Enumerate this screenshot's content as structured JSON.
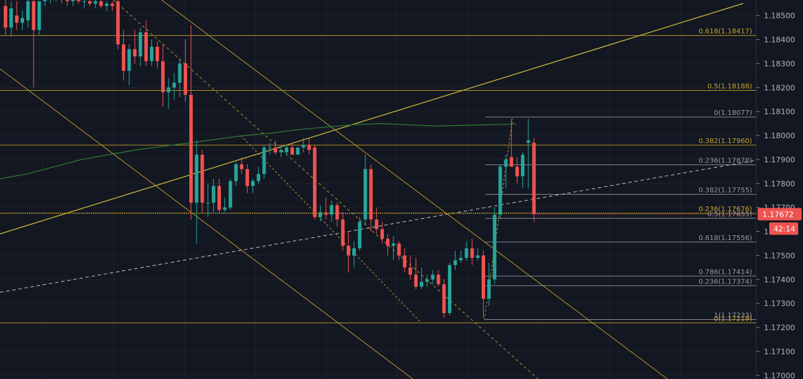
{
  "chart_data": {
    "type": "candlestick",
    "ylim": [
      1.16985,
      1.18565
    ],
    "y_ticks": [
      "1.18500",
      "1.18400",
      "1.18300",
      "1.18200",
      "1.18100",
      "1.18000",
      "1.17900",
      "1.17800",
      "1.17700",
      "1.17500",
      "1.17400",
      "1.17300",
      "1.17200",
      "1.17100",
      "1.17000"
    ],
    "colors": {
      "background": "#131722",
      "up": "#26a69a",
      "down": "#ef5350",
      "gold": "#c9a227",
      "yellow": "#e3d33a",
      "grey": "#9598a1",
      "ma": "#2e7d32",
      "dashed_white": "#d1d4dc"
    },
    "candles": [
      [
        1.1854,
        1.1857,
        1.1842,
        1.1845
      ],
      [
        1.1845,
        1.1856,
        1.1841,
        1.1853
      ],
      [
        1.185,
        1.1856,
        1.1844,
        1.1847
      ],
      [
        1.1847,
        1.1852,
        1.1844,
        1.1849
      ],
      [
        1.1848,
        1.1857,
        1.1845,
        1.1856
      ],
      [
        1.1856,
        1.1857,
        1.182,
        1.1844
      ],
      [
        1.1844,
        1.1856,
        1.1842,
        1.1856
      ],
      [
        1.1856,
        1.1858,
        1.1854,
        1.1857
      ],
      [
        1.1857,
        1.1858,
        1.1855,
        1.1858
      ],
      [
        1.1858,
        1.1859,
        1.1856,
        1.1858
      ],
      [
        1.1858,
        1.1859,
        1.1855,
        1.1857
      ],
      [
        1.1857,
        1.1858,
        1.1854,
        1.1856
      ],
      [
        1.1856,
        1.1858,
        1.1854,
        1.1857
      ],
      [
        1.1857,
        1.1858,
        1.1855,
        1.1856
      ],
      [
        1.1856,
        1.1857,
        1.1853,
        1.1856
      ],
      [
        1.1856,
        1.1857,
        1.1854,
        1.1855
      ],
      [
        1.1855,
        1.1857,
        1.1853,
        1.1856
      ],
      [
        1.1856,
        1.1857,
        1.1853,
        1.1854
      ],
      [
        1.1854,
        1.1856,
        1.1852,
        1.1855
      ],
      [
        1.1855,
        1.1856,
        1.1852,
        1.1854
      ],
      [
        1.1856,
        1.1857,
        1.1836,
        1.1838
      ],
      [
        1.1838,
        1.1844,
        1.1823,
        1.1827
      ],
      [
        1.1827,
        1.1838,
        1.1821,
        1.1836
      ],
      [
        1.1836,
        1.1844,
        1.183,
        1.1833
      ],
      [
        1.1833,
        1.1845,
        1.1829,
        1.1843
      ],
      [
        1.1843,
        1.1848,
        1.1829,
        1.1831
      ],
      [
        1.1831,
        1.184,
        1.1829,
        1.1837
      ],
      [
        1.1837,
        1.1839,
        1.1828,
        1.1831
      ],
      [
        1.1831,
        1.1838,
        1.1812,
        1.1818
      ],
      [
        1.1818,
        1.1824,
        1.1811,
        1.182
      ],
      [
        1.182,
        1.1826,
        1.1815,
        1.1822
      ],
      [
        1.1822,
        1.1832,
        1.1816,
        1.183
      ],
      [
        1.183,
        1.184,
        1.1814,
        1.1817
      ],
      [
        1.1817,
        1.1846,
        1.1765,
        1.1772
      ],
      [
        1.1772,
        1.1798,
        1.1755,
        1.1792
      ],
      [
        1.1792,
        1.1794,
        1.1768,
        1.1772
      ],
      [
        1.1772,
        1.178,
        1.1766,
        1.1772
      ],
      [
        1.1772,
        1.1782,
        1.1768,
        1.1779
      ],
      [
        1.1779,
        1.1782,
        1.1768,
        1.1769
      ],
      [
        1.1769,
        1.1774,
        1.1768,
        1.177
      ],
      [
        1.177,
        1.1782,
        1.1769,
        1.1781
      ],
      [
        1.1781,
        1.1789,
        1.1779,
        1.1788
      ],
      [
        1.1788,
        1.1791,
        1.1784,
        1.1786
      ],
      [
        1.1786,
        1.1788,
        1.1776,
        1.1779
      ],
      [
        1.1779,
        1.1782,
        1.1776,
        1.1781
      ],
      [
        1.1781,
        1.1787,
        1.178,
        1.1784
      ],
      [
        1.1784,
        1.1796,
        1.1782,
        1.1795
      ],
      [
        1.1795,
        1.1797,
        1.1792,
        1.1795
      ],
      [
        1.1795,
        1.1798,
        1.1792,
        1.1793
      ],
      [
        1.1793,
        1.1796,
        1.1791,
        1.1794
      ],
      [
        1.1793,
        1.1796,
        1.1792,
        1.1795
      ],
      [
        1.1795,
        1.1797,
        1.1792,
        1.1792
      ],
      [
        1.1792,
        1.1795,
        1.1792,
        1.1795
      ],
      [
        1.1795,
        1.1799,
        1.1793,
        1.1796
      ],
      [
        1.1796,
        1.1799,
        1.1792,
        1.1794
      ],
      [
        1.1795,
        1.1796,
        1.1765,
        1.1766
      ],
      [
        1.1766,
        1.1771,
        1.1764,
        1.1768
      ],
      [
        1.1768,
        1.1774,
        1.1765,
        1.1767
      ],
      [
        1.1767,
        1.1773,
        1.1764,
        1.1771
      ],
      [
        1.1771,
        1.1772,
        1.1762,
        1.1765
      ],
      [
        1.1765,
        1.1768,
        1.1752,
        1.1754
      ],
      [
        1.1754,
        1.176,
        1.1743,
        1.175
      ],
      [
        1.175,
        1.1756,
        1.1745,
        1.1753
      ],
      [
        1.1753,
        1.1766,
        1.1752,
        1.1764
      ],
      [
        1.1765,
        1.1792,
        1.1763,
        1.1786
      ],
      [
        1.1786,
        1.1788,
        1.176,
        1.1765
      ],
      [
        1.1765,
        1.177,
        1.1759,
        1.1761
      ],
      [
        1.1761,
        1.1764,
        1.1755,
        1.1757
      ],
      [
        1.1757,
        1.1759,
        1.175,
        1.1754
      ],
      [
        1.1754,
        1.1758,
        1.1748,
        1.1755
      ],
      [
        1.1755,
        1.1756,
        1.1748,
        1.175
      ],
      [
        1.175,
        1.1753,
        1.1743,
        1.1745
      ],
      [
        1.1745,
        1.175,
        1.174,
        1.1742
      ],
      [
        1.1742,
        1.1749,
        1.1736,
        1.1737
      ],
      [
        1.1737,
        1.1745,
        1.1736,
        1.1739
      ],
      [
        1.1739,
        1.1742,
        1.1737,
        1.174
      ],
      [
        1.174,
        1.1744,
        1.1738,
        1.1742
      ],
      [
        1.1742,
        1.1744,
        1.1737,
        1.1738
      ],
      [
        1.1738,
        1.174,
        1.1724,
        1.1726
      ],
      [
        1.1726,
        1.1747,
        1.1725,
        1.1746
      ],
      [
        1.1746,
        1.1752,
        1.1744,
        1.1748
      ],
      [
        1.1748,
        1.1752,
        1.1747,
        1.1749
      ],
      [
        1.1749,
        1.1756,
        1.1748,
        1.1753
      ],
      [
        1.1753,
        1.1757,
        1.1746,
        1.1749
      ],
      [
        1.1749,
        1.1753,
        1.1748,
        1.175
      ],
      [
        1.175,
        1.1752,
        1.1724,
        1.1732
      ],
      [
        1.1732,
        1.1747,
        1.1729,
        1.174
      ],
      [
        1.174,
        1.177,
        1.1738,
        1.1767
      ],
      [
        1.1767,
        1.1788,
        1.1765,
        1.1787
      ],
      [
        1.1787,
        1.1792,
        1.1778,
        1.179
      ],
      [
        1.1791,
        1.1807,
        1.1787,
        1.1787
      ],
      [
        1.1787,
        1.1791,
        1.178,
        1.1783
      ],
      [
        1.1783,
        1.1793,
        1.1778,
        1.1792
      ],
      [
        1.1797,
        1.1807,
        1.1778,
        1.1798
      ],
      [
        1.1797,
        1.1799,
        1.1764,
        1.17672
      ]
    ],
    "ma_series": [
      1.1782,
      1.1784,
      1.1787,
      1.179,
      1.1792,
      1.1794,
      1.17955,
      1.1797,
      1.17985,
      1.18,
      1.1801,
      1.18025,
      1.18035,
      1.18045,
      1.1805,
      1.18045,
      1.1804,
      1.18042,
      1.18045,
      1.18048
    ],
    "y_axis_labels": [
      "1.18500",
      "1.18400",
      "1.18300",
      "1.18200",
      "1.18100",
      "1.18000",
      "1.17900",
      "1.17800",
      "1.17700",
      "1.17600",
      "1.17500",
      "1.17400",
      "1.17300",
      "1.17200",
      "1.17100",
      "1.17000"
    ],
    "fib_levels": [
      {
        "label": "0.618(1.18417)",
        "price": 1.18417,
        "color": "#c9a227"
      },
      {
        "label": "0.5(1.18188)",
        "price": 1.18188,
        "color": "#c9a227"
      },
      {
        "label": "0(1.18077)",
        "price": 1.18077,
        "color": "#9598a1"
      },
      {
        "label": "0.382(1.17960)",
        "price": 1.1796,
        "color": "#c9a227"
      },
      {
        "label": "0.236(1.17878)",
        "price": 1.17878,
        "color": "#9598a1"
      },
      {
        "label": "0.382(1.17755)",
        "price": 1.17755,
        "color": "#9598a1"
      },
      {
        "label": "0.236(1.17676)",
        "price": 1.17676,
        "color": "#c9a227"
      },
      {
        "label": "0.5(1.17655)",
        "price": 1.17655,
        "color": "#9598a1"
      },
      {
        "label": "0.618(1.17556)",
        "price": 1.17556,
        "color": "#9598a1"
      },
      {
        "label": "0.786(1.17414)",
        "price": 1.17414,
        "color": "#9598a1"
      },
      {
        "label": "0.236(1.17374)",
        "price": 1.17374,
        "color": "#9598a1"
      },
      {
        "label": "1(1.17233)",
        "price": 1.17233,
        "color": "#9598a1"
      },
      {
        "label": "0(1.17219)",
        "price": 1.17219,
        "color": "#c9a227"
      }
    ],
    "current_price": "1.17672",
    "countdown": "42:14"
  }
}
